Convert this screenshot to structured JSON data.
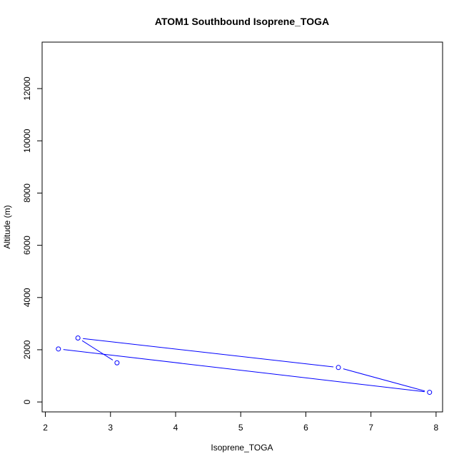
{
  "chart_data": {
    "type": "line",
    "title": "ATOM1 Southbound Isoprene_TOGA",
    "xlabel": "Isoprene_TOGA",
    "ylabel": "Altitude (m)",
    "xlim": [
      1.95,
      8.1
    ],
    "ylim": [
      -380,
      13780
    ],
    "x_ticks": [
      2,
      3,
      4,
      5,
      6,
      7,
      8
    ],
    "y_ticks": [
      0,
      2000,
      4000,
      6000,
      8000,
      10000,
      12000
    ],
    "grid": false,
    "legend": "none",
    "series": [
      {
        "color": "#0000ff",
        "marker": "open-circle",
        "points": [
          {
            "x": 3.1,
            "y": 1500
          },
          {
            "x": 2.5,
            "y": 2450
          },
          {
            "x": 6.5,
            "y": 1320
          },
          {
            "x": 7.9,
            "y": 370
          },
          {
            "x": 2.2,
            "y": 2030
          }
        ]
      }
    ]
  }
}
